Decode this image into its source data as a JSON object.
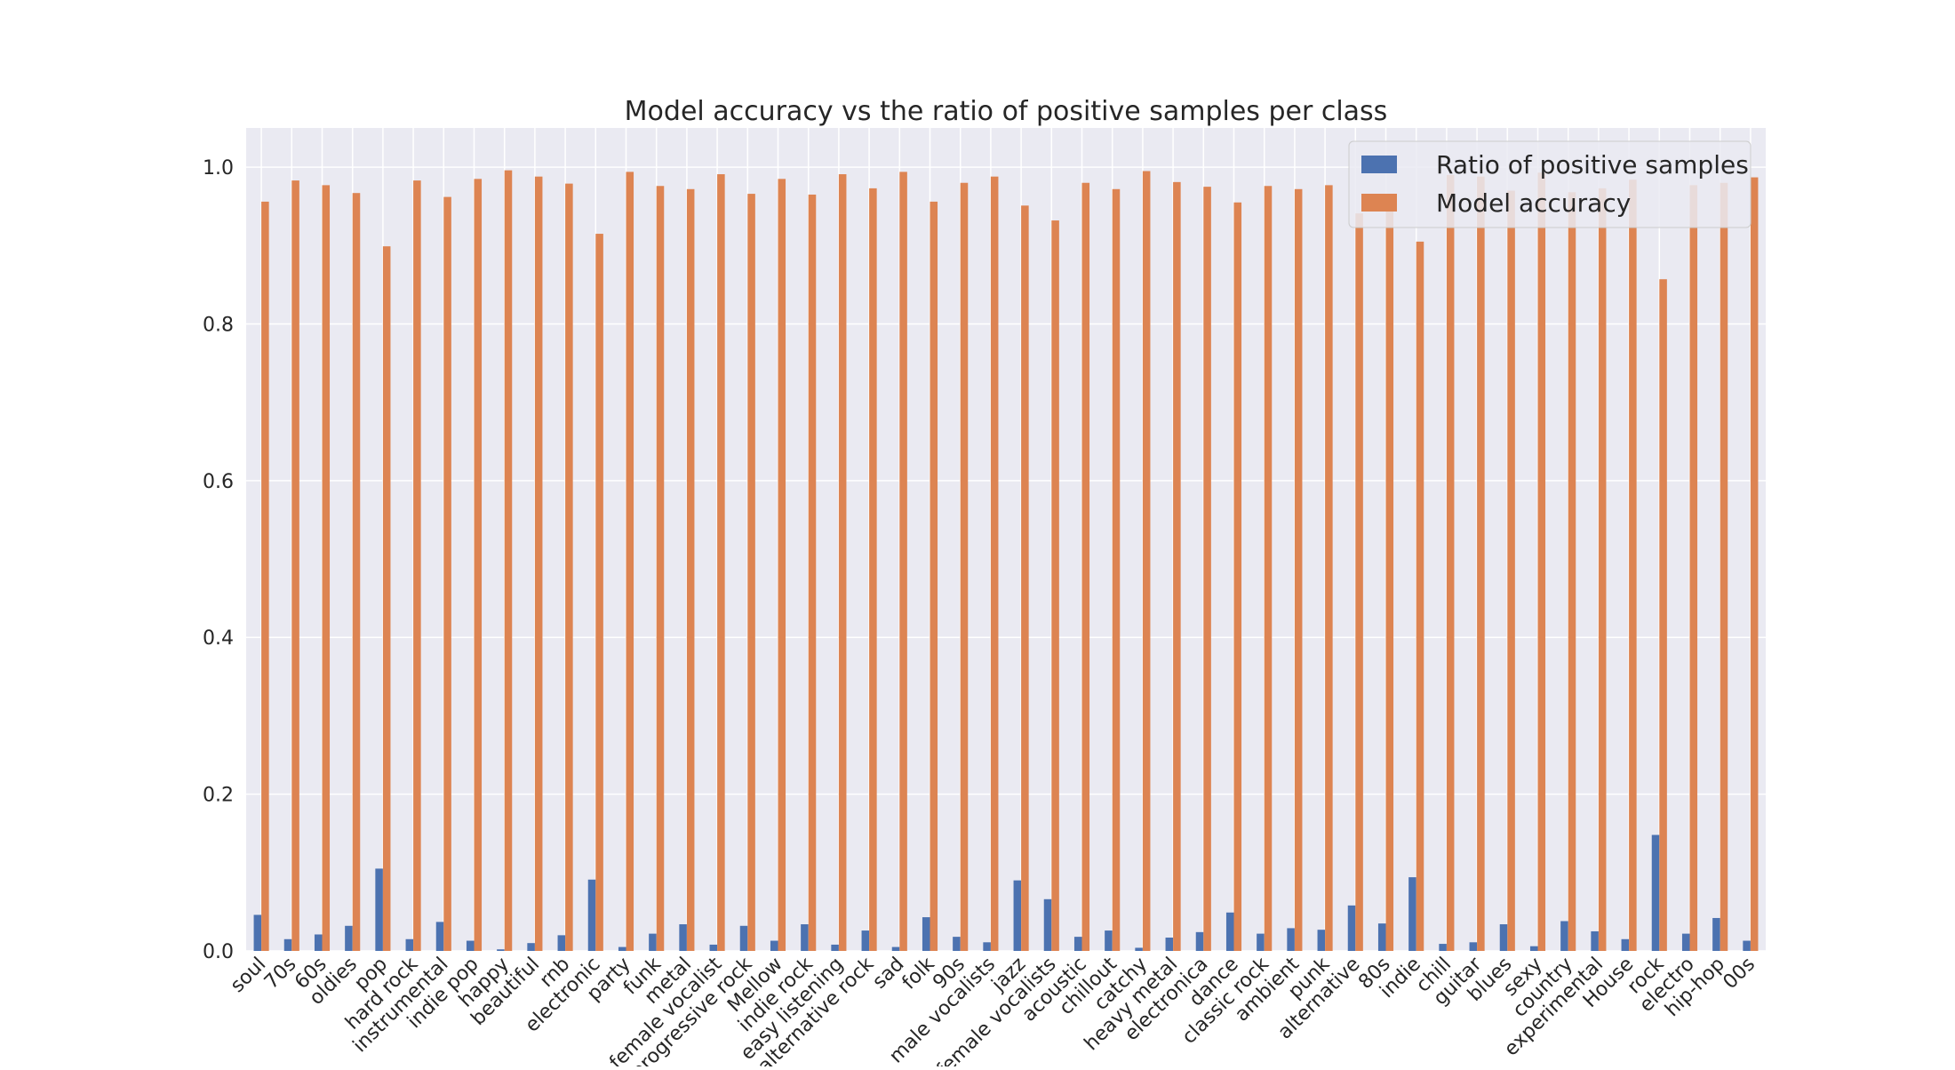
{
  "chart_data": {
    "type": "bar",
    "title": "Model accuracy vs the ratio of positive samples per class",
    "xlabel": "",
    "ylabel": "",
    "ylim": [
      0,
      1.05
    ],
    "yticks": [
      "0.0",
      "0.2",
      "0.4",
      "0.6",
      "0.8",
      "1.0"
    ],
    "grid": true,
    "legend_position": "top-right",
    "categories": [
      "soul",
      "70s",
      "60s",
      "oldies",
      "pop",
      "hard rock",
      "instrumental",
      "indie pop",
      "happy",
      "beautiful",
      "rnb",
      "electronic",
      "party",
      "funk",
      "metal",
      "female vocalist",
      "progressive rock",
      "Mellow",
      "indie rock",
      "easy listening",
      "alternative rock",
      "sad",
      "folk",
      "90s",
      "male vocalists",
      "jazz",
      "female vocalists",
      "acoustic",
      "chillout",
      "catchy",
      "heavy metal",
      "electronica",
      "dance",
      "classic rock",
      "ambient",
      "punk",
      "alternative",
      "80s",
      "indie",
      "chill",
      "guitar",
      "blues",
      "sexy",
      "country",
      "experimental",
      "House",
      "rock",
      "electro",
      "hip-hop",
      "00s"
    ],
    "series": [
      {
        "name": "Ratio of positive samples",
        "color": "#4c72b0",
        "values": [
          0.046,
          0.015,
          0.021,
          0.032,
          0.105,
          0.015,
          0.037,
          0.013,
          0.002,
          0.01,
          0.02,
          0.091,
          0.005,
          0.022,
          0.034,
          0.008,
          0.032,
          0.013,
          0.034,
          0.008,
          0.026,
          0.005,
          0.043,
          0.018,
          0.011,
          0.09,
          0.066,
          0.018,
          0.026,
          0.004,
          0.017,
          0.024,
          0.049,
          0.022,
          0.029,
          0.027,
          0.058,
          0.035,
          0.094,
          0.009,
          0.011,
          0.034,
          0.006,
          0.038,
          0.025,
          0.015,
          0.148,
          0.022,
          0.042,
          0.013
        ]
      },
      {
        "name": "Model accuracy",
        "color": "#dd8452",
        "values": [
          0.956,
          0.983,
          0.977,
          0.967,
          0.899,
          0.983,
          0.962,
          0.985,
          0.996,
          0.988,
          0.979,
          0.915,
          0.994,
          0.976,
          0.972,
          0.991,
          0.966,
          0.985,
          0.965,
          0.991,
          0.973,
          0.994,
          0.956,
          0.98,
          0.988,
          0.951,
          0.932,
          0.98,
          0.972,
          0.995,
          0.981,
          0.975,
          0.955,
          0.976,
          0.972,
          0.977,
          0.941,
          0.963,
          0.905,
          0.99,
          0.988,
          0.97,
          0.993,
          0.968,
          0.973,
          0.984,
          0.857,
          0.977,
          0.98,
          0.987
        ]
      }
    ]
  }
}
